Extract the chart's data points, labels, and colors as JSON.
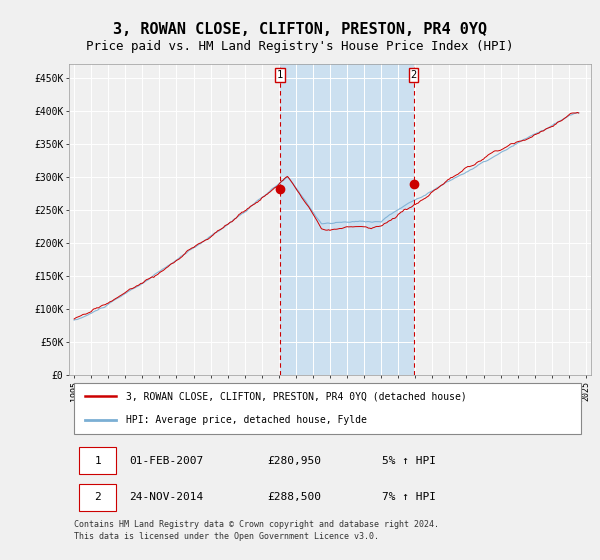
{
  "title": "3, ROWAN CLOSE, CLIFTON, PRESTON, PR4 0YQ",
  "subtitle": "Price paid vs. HM Land Registry's House Price Index (HPI)",
  "title_fontsize": 11,
  "subtitle_fontsize": 9,
  "ylabel_ticks": [
    "£0",
    "£50K",
    "£100K",
    "£150K",
    "£200K",
    "£250K",
    "£300K",
    "£350K",
    "£400K",
    "£450K"
  ],
  "ylabel_values": [
    0,
    50000,
    100000,
    150000,
    200000,
    250000,
    300000,
    350000,
    400000,
    450000
  ],
  "ylim": [
    0,
    470000
  ],
  "xlim_start": 1994.7,
  "xlim_end": 2025.3,
  "background_color": "#f0f0f0",
  "plot_bg_color": "#f0f0f0",
  "grid_color": "#ffffff",
  "hpi_line_color": "#7bafd4",
  "price_line_color": "#cc0000",
  "shade_color": "#cce0f0",
  "marker1_date": 2007.08,
  "marker2_date": 2014.9,
  "marker1_price": 280950,
  "marker2_price": 288500,
  "legend_line1": "3, ROWAN CLOSE, CLIFTON, PRESTON, PR4 0YQ (detached house)",
  "legend_line2": "HPI: Average price, detached house, Fylde",
  "table_row1": [
    "1",
    "01-FEB-2007",
    "£280,950",
    "5% ↑ HPI"
  ],
  "table_row2": [
    "2",
    "24-NOV-2014",
    "£288,500",
    "7% ↑ HPI"
  ],
  "footnote": "Contains HM Land Registry data © Crown copyright and database right 2024.\nThis data is licensed under the Open Government Licence v3.0."
}
